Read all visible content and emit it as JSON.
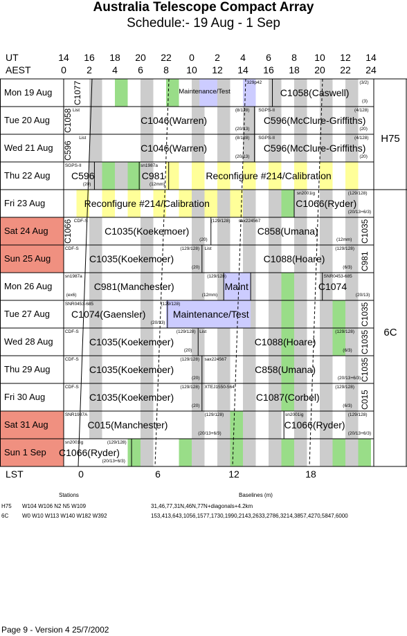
{
  "title": "Australia Telescope Compact Array",
  "subtitle": "Schedule:- 19 Aug - 1  Sep",
  "axis": {
    "ut_label": "UT",
    "aest_label": "AEST",
    "lst_label": "LST",
    "ut_ticks": [
      "14",
      "16",
      "18",
      "20",
      "22",
      "0",
      "2",
      "4",
      "6",
      "8",
      "10",
      "12",
      "14"
    ],
    "aest_ticks": [
      "0",
      "2",
      "4",
      "6",
      "8",
      "10",
      "12",
      "14",
      "16",
      "18",
      "20",
      "22",
      "24"
    ],
    "lst_ticks": [
      "0",
      "6",
      "12",
      "18"
    ]
  },
  "days": [
    {
      "label": "Mon  19 Aug",
      "weekend": false,
      "green": [
        4,
        8
      ],
      "grey": [
        2,
        6,
        10,
        12,
        14,
        16,
        18,
        20,
        22
      ],
      "blue": [
        [
          10.6,
          12
        ],
        [
          14,
          15
        ]
      ],
      "yellow": [],
      "bigs": [
        {
          "t": "Maintenance/Test",
          "x": 11,
          "small": true
        },
        {
          "t": "C1058(Caswell)",
          "x": 19.6
        }
      ],
      "smalls": [
        {
          "t": "329p42",
          "x": 14.3,
          "y": 2
        },
        {
          "t": "(3/2)",
          "x": 23.1,
          "y": 2
        },
        {
          "t": "(3)",
          "x": 23.3,
          "y": 29
        }
      ],
      "dividers": [
        16.3
      ],
      "vlabels": [
        {
          "t": "C1077",
          "x": 0.85
        }
      ]
    },
    {
      "label": "Tue  20 Aug",
      "weekend": false,
      "green": [],
      "grey": [
        2,
        6,
        10,
        12,
        14,
        16,
        18,
        20,
        22
      ],
      "blue": [],
      "yellow": [],
      "bigs": [
        {
          "t": "C1046(Warren)",
          "x": 8.6
        },
        {
          "t": "C596(McClure-Griffiths)",
          "x": 19.6
        }
      ],
      "smalls": [
        {
          "t": "List",
          "x": 0.7,
          "y": 2
        },
        {
          "t": "(8/128)",
          "x": 13.4,
          "y": 2
        },
        {
          "t": "SGPS-II",
          "x": 15.2,
          "y": 2
        },
        {
          "t": "(4/128)",
          "x": 22.7,
          "y": 2
        },
        {
          "t": "(20/13)",
          "x": 13.4,
          "y": 29
        },
        {
          "t": "(20)",
          "x": 23.1,
          "y": 29
        }
      ],
      "dividers": [
        14.9
      ],
      "vlabels": [
        {
          "t": "C1058",
          "x": 0.1
        }
      ]
    },
    {
      "label": "Wed  21 Aug",
      "weekend": false,
      "green": [],
      "grey": [
        2,
        6,
        10,
        12,
        14,
        16,
        18,
        20,
        22
      ],
      "blue": [],
      "yellow": [],
      "bigs": [
        {
          "t": "C1046(Warren)",
          "x": 8.6
        },
        {
          "t": "C596(McClure-Griffiths)",
          "x": 19.6
        }
      ],
      "smalls": [
        {
          "t": "List",
          "x": 1.2,
          "y": 2
        },
        {
          "t": "(8/128)",
          "x": 13.4,
          "y": 2
        },
        {
          "t": "SGPS-II",
          "x": 15.2,
          "y": 2
        },
        {
          "t": "(4/128)",
          "x": 22.7,
          "y": 2
        },
        {
          "t": "(20/13)",
          "x": 13.4,
          "y": 29
        },
        {
          "t": "(20)",
          "x": 23.1,
          "y": 29
        }
      ],
      "dividers": [
        14.9
      ],
      "vlabels": [
        {
          "t": "C596",
          "x": 0.1
        }
      ]
    },
    {
      "label": "Thu  22 Aug",
      "weekend": false,
      "green": [
        3,
        5
      ],
      "grey": [
        2,
        4,
        6,
        10,
        12,
        14,
        16,
        18,
        20,
        22
      ],
      "blue": [],
      "yellow": [
        [
          8,
          9
        ],
        [
          10,
          11
        ],
        [
          12,
          13
        ],
        [
          14,
          15
        ],
        [
          16,
          17
        ],
        [
          18,
          19
        ],
        [
          20,
          21
        ],
        [
          22,
          23
        ]
      ],
      "bigs": [
        {
          "t": "C596",
          "x": 1.5
        },
        {
          "t": "C981",
          "x": 7
        },
        {
          "t": "Reconfigure #214/Calibration",
          "x": 16
        }
      ],
      "smalls": [
        {
          "t": "SGPS-II",
          "x": 0.1,
          "y": 2
        },
        {
          "t": "(20)",
          "x": 1.5,
          "y": 29
        },
        {
          "t": "sn1987a",
          "x": 6,
          "y": 2
        },
        {
          "t": "(12mm)",
          "x": 6.7,
          "y": 29
        }
      ],
      "dividers": [
        2.4,
        5.9,
        8.2
      ],
      "vlabels": []
    },
    {
      "label": "Fri   23 Aug",
      "weekend": false,
      "green": [
        17
      ],
      "grey": [
        10,
        12,
        14,
        16,
        18,
        20,
        22
      ],
      "blue": [],
      "yellow": [
        [
          1,
          2
        ],
        [
          3,
          4
        ],
        [
          5,
          6
        ],
        [
          7,
          8
        ],
        [
          9,
          10
        ],
        [
          11,
          12
        ],
        [
          13,
          14
        ]
      ],
      "bigs": [
        {
          "t": "Reconfigure #214/Calibration",
          "x": 6.5
        },
        {
          "t": "C1066(Ryder)",
          "x": 20.5
        }
      ],
      "smalls": [
        {
          "t": "sn2001ig",
          "x": 18.2,
          "y": 2
        },
        {
          "t": "(129/128)",
          "x": 22.2,
          "y": 2
        },
        {
          "t": "(20/13+6/3)",
          "x": 22.2,
          "y": 29
        }
      ],
      "dividers": [
        18
      ],
      "vlabels": []
    },
    {
      "label": "Sat  24 Aug",
      "weekend": true,
      "green": [],
      "grey": [
        2,
        6,
        10,
        12,
        14,
        16,
        18,
        20,
        22
      ],
      "blue": [],
      "yellow": [],
      "bigs": [
        {
          "t": "C1035(Koekemoer)",
          "x": 6.5
        },
        {
          "t": "C858(Umana)",
          "x": 17.5
        }
      ],
      "smalls": [
        {
          "t": "CDF-S",
          "x": 0.8,
          "y": 2
        },
        {
          "t": "(129/128)",
          "x": 11.5,
          "y": 2
        },
        {
          "t": "sax224567",
          "x": 11.6,
          "y": 2,
          "dx": 38
        },
        {
          "t": "(20)",
          "x": 10.6,
          "y": 29
        },
        {
          "t": "(12mm)",
          "x": 21.3,
          "y": 29
        }
      ],
      "dividers": [
        11.5
      ],
      "vlabels": [
        {
          "t": "C1066",
          "x": 0.1
        },
        {
          "t": "C1035",
          "x": 23.3
        }
      ]
    },
    {
      "label": "Sun  25 Aug",
      "weekend": true,
      "green": [],
      "grey": [
        2,
        6,
        10,
        12,
        14,
        16,
        18,
        20,
        22
      ],
      "blue": [],
      "yellow": [],
      "bigs": [
        {
          "t": "C1035(Koekemoer)",
          "x": 5.3
        },
        {
          "t": "C1088(Hoare)",
          "x": 18
        }
      ],
      "smalls": [
        {
          "t": "CDF-S",
          "x": 0.1,
          "y": 2
        },
        {
          "t": "(129/128)",
          "x": 9.1,
          "y": 2
        },
        {
          "t": "List",
          "x": 11,
          "y": 2
        },
        {
          "t": "(129/128)",
          "x": 21.2,
          "y": 2
        },
        {
          "t": "(20)",
          "x": 10,
          "y": 29
        },
        {
          "t": "(6/3)",
          "x": 21.8,
          "y": 29
        }
      ],
      "dividers": [
        10.8
      ],
      "vlabels": [
        {
          "t": "C981",
          "x": 23.3
        }
      ]
    },
    {
      "label": "Mon  26 Aug",
      "weekend": false,
      "green": [
        17
      ],
      "grey": [
        2,
        6,
        10,
        12,
        14,
        16,
        18,
        20,
        22
      ],
      "blue": [
        [
          12.5,
          14.6
        ]
      ],
      "yellow": [],
      "bigs": [
        {
          "t": "C981(Manchester)",
          "x": 5.5
        },
        {
          "t": "Maint",
          "x": 13.5
        },
        {
          "t": "C1074",
          "x": 21
        }
      ],
      "smalls": [
        {
          "t": "sn1987a",
          "x": 0.1,
          "y": 2
        },
        {
          "t": "(129/128)",
          "x": 11.2,
          "y": 2
        },
        {
          "t": "SNR0453-685",
          "x": 20.3,
          "y": 2
        },
        {
          "t": "(ex6)",
          "x": 0.2,
          "y": 29
        },
        {
          "t": "(12mm)",
          "x": 10.8,
          "y": 29
        },
        {
          "t": "(20/13)",
          "x": 22.8,
          "y": 29
        }
      ],
      "dividers": [
        12.5,
        14.6,
        20.2
      ],
      "vlabels": []
    },
    {
      "label": "Tue  27 Aug",
      "weekend": false,
      "green": [
        17,
        21
      ],
      "grey": [
        2,
        6,
        10,
        12,
        14,
        16,
        18,
        20,
        22
      ],
      "blue": [
        [
          8,
          14.6
        ]
      ],
      "yellow": [],
      "bigs": [
        {
          "t": "C1074(Gaensler)",
          "x": 3.5
        },
        {
          "t": "Maintenance/Test",
          "x": 11.5
        }
      ],
      "smalls": [
        {
          "t": "SNR0453-685",
          "x": 0.1,
          "y": 2
        },
        {
          "t": "(129/128)",
          "x": 7.6,
          "y": 2
        },
        {
          "t": "(20/13)",
          "x": 6.8,
          "y": 29
        }
      ],
      "dividers": [
        8.1
      ],
      "vlabels": [
        {
          "t": "C1035",
          "x": 23.3
        }
      ]
    },
    {
      "label": "Wed  28 Aug",
      "weekend": false,
      "green": [
        17,
        21
      ],
      "grey": [
        2,
        6,
        10,
        12,
        14,
        16,
        18,
        20,
        22
      ],
      "blue": [],
      "yellow": [],
      "bigs": [
        {
          "t": "C1035(Koekemoer)",
          "x": 5.3
        },
        {
          "t": "C1088(Hoare)",
          "x": 17.3
        }
      ],
      "smalls": [
        {
          "t": "CDF-S",
          "x": 0.1,
          "y": 2
        },
        {
          "t": "(129/128)",
          "x": 8.8,
          "y": 2
        },
        {
          "t": "List",
          "x": 10.6,
          "y": 2
        },
        {
          "t": "(129/128)",
          "x": 21.2,
          "y": 2
        },
        {
          "t": "(20)",
          "x": 9.4,
          "y": 29
        },
        {
          "t": "(6/3)",
          "x": 21.8,
          "y": 29
        }
      ],
      "dividers": [
        10.5
      ],
      "vlabels": [
        {
          "t": "C1035",
          "x": 23.3
        }
      ]
    },
    {
      "label": "Thu  29 Aug",
      "weekend": false,
      "green": [
        17
      ],
      "grey": [
        2,
        6,
        10,
        12,
        14,
        16,
        18,
        20,
        22
      ],
      "blue": [],
      "yellow": [],
      "bigs": [
        {
          "t": "C1035(Koekemoer)",
          "x": 5.3
        },
        {
          "t": "C858(Umana)",
          "x": 17.3
        }
      ],
      "smalls": [
        {
          "t": "CDF-S",
          "x": 0.1,
          "y": 2
        },
        {
          "t": "(129/128)",
          "x": 9.1,
          "y": 2
        },
        {
          "t": "sax224567",
          "x": 11,
          "y": 2
        },
        {
          "t": "(20)",
          "x": 10,
          "y": 29
        },
        {
          "t": "(20/13+6/3)",
          "x": 21.4,
          "y": 29
        }
      ],
      "dividers": [
        10.8
      ],
      "vlabels": [
        {
          "t": "C1035",
          "x": 23.3
        }
      ]
    },
    {
      "label": "Fri   30 Aug",
      "weekend": false,
      "green": [
        17
      ],
      "grey": [
        2,
        6,
        10,
        12,
        14,
        16,
        18,
        20,
        22
      ],
      "blue": [],
      "yellow": [],
      "bigs": [
        {
          "t": "C1035(Koekemoer)",
          "x": 5.3
        },
        {
          "t": "C1087(Corbel)",
          "x": 17.5
        }
      ],
      "smalls": [
        {
          "t": "CDF-S",
          "x": 0.1,
          "y": 2
        },
        {
          "t": "(129/128)",
          "x": 9.1,
          "y": 2
        },
        {
          "t": "XTEJ1550-564",
          "x": 11,
          "y": 2
        },
        {
          "t": "(129/128)",
          "x": 21.2,
          "y": 2
        },
        {
          "t": "(20)",
          "x": 10,
          "y": 29
        },
        {
          "t": "(6/3)",
          "x": 21.8,
          "y": 29
        }
      ],
      "dividers": [
        10.8
      ],
      "vlabels": [
        {
          "t": "C015",
          "x": 23.3
        }
      ]
    },
    {
      "label": "Sat  31 Aug",
      "weekend": true,
      "green": [
        13
      ],
      "grey": [
        2,
        6,
        10,
        12,
        14,
        16,
        18,
        20,
        22
      ],
      "blue": [],
      "yellow": [],
      "bigs": [
        {
          "t": "C015(Manchester)",
          "x": 5
        },
        {
          "t": "C1066(Ryder)",
          "x": 19.6
        }
      ],
      "smalls": [
        {
          "t": "SNR1987A",
          "x": 0.1,
          "y": 2
        },
        {
          "t": "(129/128)",
          "x": 11,
          "y": 2
        },
        {
          "t": "sn2001ig",
          "x": 17.3,
          "y": 2
        },
        {
          "t": "(129/128)",
          "x": 22.2,
          "y": 2
        },
        {
          "t": "(20/13+6/3)",
          "x": 10.5,
          "y": 29
        },
        {
          "t": "(20/13+6/3)",
          "x": 22.2,
          "y": 29
        }
      ],
      "dividers": [
        17.2
      ],
      "vlabels": []
    },
    {
      "label": "Sun   1  Sep",
      "weekend": true,
      "green": [
        5,
        9,
        13,
        17,
        21,
        23
      ],
      "grey": [
        6,
        10,
        12,
        14,
        16,
        18,
        20,
        22
      ],
      "blue": [],
      "yellow": [],
      "bigs": [
        {
          "t": "C1066(Ryder)",
          "x": 2
        }
      ],
      "smalls": [
        {
          "t": "sn2001ig",
          "x": 0.1,
          "y": 2
        },
        {
          "t": "(129/128)",
          "x": 3.4,
          "y": 2
        },
        {
          "t": "(20/13+6/3)",
          "x": 3,
          "y": 29
        }
      ],
      "dividers": [
        5.3
      ],
      "vlabels": []
    }
  ],
  "configs": [
    {
      "label": "H75",
      "row": 1
    },
    {
      "label": "6C",
      "row": 8
    }
  ],
  "stations": {
    "heading": "Stations",
    "baselines_heading": "Baselines (m)",
    "rows": [
      {
        "cfg": "H75",
        "stations": "W104 W106 N2 N5 W109",
        "baselines": "31,46,77,31N,46N,77N+diagonals+4.2km"
      },
      {
        "cfg": "6C",
        "stations": "W0 W10 W113 W140 W182 W392",
        "baselines": "153,413,643,1056,1577,1730,1990,2143,2633,2786,3214,3857,4270,5847,6000"
      }
    ]
  },
  "footer": "Page 9 - Version 4  25/7/2002",
  "colors": {
    "grey": "#cccccc",
    "green": "#99dd88",
    "blue": "#ccccff",
    "yellow": "#ffff99",
    "weekend": "#f09080"
  }
}
